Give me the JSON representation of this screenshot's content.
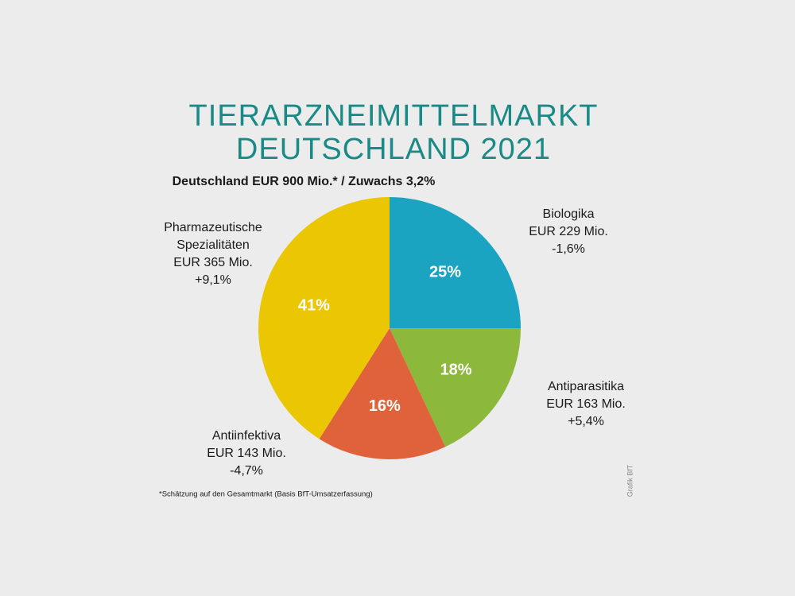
{
  "chart_data": {
    "type": "pie",
    "title": [
      "TIERARZNEIMITTELMARKT",
      "DEUTSCHLAND 2021"
    ],
    "subtitle": "Deutschland EUR 900 Mio.* / Zuwachs 3,2%",
    "categories": [
      "Biologika",
      "Antiparasitika",
      "Antiinfektiva",
      "Pharmazeutische\nSpezialitäten"
    ],
    "amounts": [
      "EUR 229 Mio.",
      "EUR 163 Mio.",
      "EUR 143 Mio.",
      "EUR 365 Mio."
    ],
    "changes": [
      "-1,6%",
      "+5,4%",
      "-4,7%",
      "+9,1%"
    ],
    "values": [
      25,
      18,
      16,
      41
    ],
    "value_labels": [
      "25%",
      "18%",
      "16%",
      "41%"
    ],
    "colors": [
      "#1ba4c1",
      "#8cb93b",
      "#e0623a",
      "#ebc602"
    ],
    "footnote": "*Schätzung auf den Gesamtmarkt (Basis BfT-Umsatzerfassung)",
    "credit": "Grafik BfT"
  }
}
